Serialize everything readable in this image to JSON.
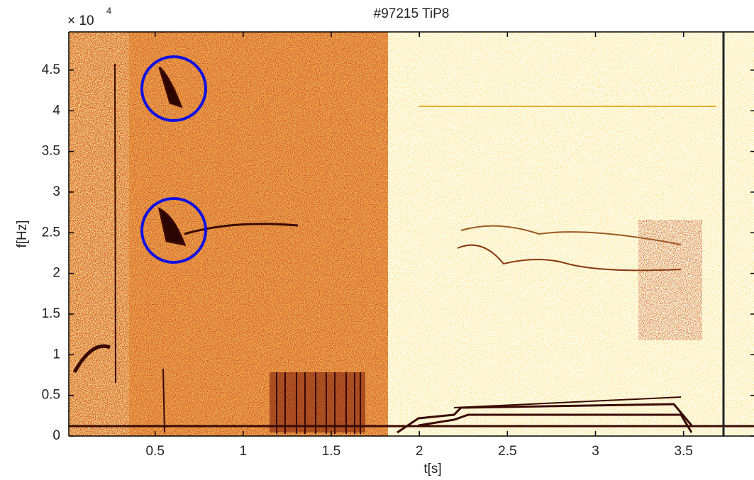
{
  "chart_data": {
    "type": "spectrogram",
    "title": "#97215 TiP8",
    "x_label": "t[s]",
    "y_label": "f[Hz]",
    "y_multiplier": {
      "base": "× 10",
      "power": "4"
    },
    "xlim": [
      0.01,
      3.9
    ],
    "ylim": [
      0,
      49700
    ],
    "xticks": [
      0.5,
      1,
      1.5,
      2,
      2.5,
      3,
      3.5
    ],
    "yticks": [
      0,
      {
        "value": 5000,
        "label": "0.5"
      },
      {
        "value": 10000,
        "label": "1"
      },
      {
        "value": 15000,
        "label": "1.5"
      },
      {
        "value": 20000,
        "label": "2"
      },
      {
        "value": 25000,
        "label": "2.5"
      },
      {
        "value": 30000,
        "label": "3"
      },
      {
        "value": 35000,
        "label": "3.5"
      },
      {
        "value": 40000,
        "label": "4"
      },
      {
        "value": 45000,
        "label": "4.5"
      }
    ]
  }
}
